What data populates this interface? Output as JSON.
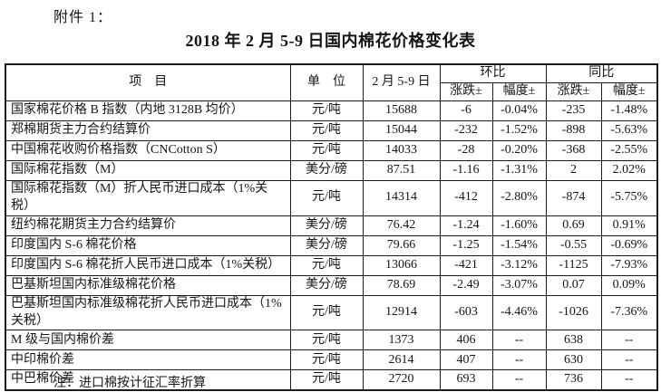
{
  "page": {
    "attachment_label": "附件 1：",
    "title": "2018 年 2 月 5-9 日国内棉花价格变化表",
    "footnote": "注：进口棉按计征汇率折算"
  },
  "table": {
    "headers": {
      "item": "项　目",
      "unit": "单　位",
      "period": "2 月 5-9 日",
      "mom_group": "环比",
      "yoy_group": "同比",
      "change_label": "涨跌±",
      "rate_label": "幅度±"
    },
    "rows": [
      {
        "item": "国家棉花价格 B 指数（内地 3128B 均价）",
        "unit": "元/吨",
        "value": "15688",
        "mom_change": "-6",
        "mom_rate": "-0.04%",
        "yoy_change": "-235",
        "yoy_rate": "-1.48%"
      },
      {
        "item": "郑棉期货主力合约结算价",
        "unit": "元/吨",
        "value": "15044",
        "mom_change": "-232",
        "mom_rate": "-1.52%",
        "yoy_change": "-898",
        "yoy_rate": "-5.63%"
      },
      {
        "item": "中国棉花收购价格指数（CNCotton S）",
        "unit": "元/吨",
        "value": "14033",
        "mom_change": "-28",
        "mom_rate": "-0.20%",
        "yoy_change": "-368",
        "yoy_rate": "-2.55%"
      },
      {
        "item": "国际棉花指数（M）",
        "unit": "美分/磅",
        "value": "87.51",
        "mom_change": "-1.16",
        "mom_rate": "-1.31%",
        "yoy_change": "2",
        "yoy_rate": "2.02%"
      },
      {
        "item": "国际棉花指数（M）折人民币进口成本（1%关税）",
        "unit": "元/吨",
        "value": "14314",
        "mom_change": "-412",
        "mom_rate": "-2.80%",
        "yoy_change": "-874",
        "yoy_rate": "-5.75%"
      },
      {
        "item": "纽约棉花期货主力合约结算价",
        "unit": "美分/磅",
        "value": "76.42",
        "mom_change": "-1.24",
        "mom_rate": "-1.60%",
        "yoy_change": "0.69",
        "yoy_rate": "0.91%"
      },
      {
        "item": "印度国内 S-6 棉花价格",
        "unit": "美分/磅",
        "value": "79.66",
        "mom_change": "-1.25",
        "mom_rate": "-1.54%",
        "yoy_change": "-0.55",
        "yoy_rate": "-0.69%"
      },
      {
        "item": "印度国内 S-6 棉花折人民币进口成本（1%关税）",
        "unit": "元/吨",
        "value": "13066",
        "mom_change": "-421",
        "mom_rate": "-3.12%",
        "yoy_change": "-1125",
        "yoy_rate": "-7.93%"
      },
      {
        "item": "巴基斯坦国内标准级棉花价格",
        "unit": "美分/磅",
        "value": "78.69",
        "mom_change": "-2.49",
        "mom_rate": "-3.07%",
        "yoy_change": "0.07",
        "yoy_rate": "0.09%"
      },
      {
        "item": "巴基斯坦国内标准级棉花折人民币进口成本（1%关税）",
        "unit": "元/吨",
        "value": "12914",
        "mom_change": "-603",
        "mom_rate": "-4.46%",
        "yoy_change": "-1026",
        "yoy_rate": "-7.36%"
      },
      {
        "item": "M 级与国内棉价差",
        "unit": "元/吨",
        "value": "1373",
        "mom_change": "406",
        "mom_rate": "--",
        "yoy_change": "638",
        "yoy_rate": "--"
      },
      {
        "item": "中印棉价差",
        "unit": "元/吨",
        "value": "2614",
        "mom_change": "407",
        "mom_rate": "--",
        "yoy_change": "630",
        "yoy_rate": "--"
      },
      {
        "item": "中巴棉价差",
        "unit": "元/吨",
        "value": "2720",
        "mom_change": "693",
        "mom_rate": "--",
        "yoy_change": "736",
        "yoy_rate": "--"
      }
    ]
  }
}
